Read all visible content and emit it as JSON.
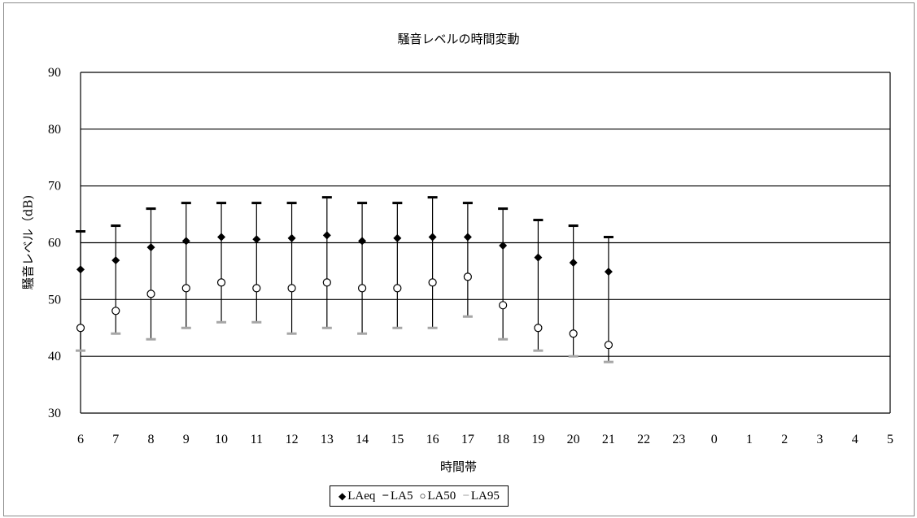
{
  "chart_data": {
    "type": "scatter",
    "title": "騒音レベルの時間変動",
    "xlabel": "時間帯",
    "ylabel": "騒音レベル（dB)",
    "categories": [
      "6",
      "7",
      "8",
      "9",
      "10",
      "11",
      "12",
      "13",
      "14",
      "15",
      "16",
      "17",
      "18",
      "19",
      "20",
      "21",
      "22",
      "23",
      "0",
      "1",
      "2",
      "3",
      "4",
      "5"
    ],
    "ylim": [
      30,
      90
    ],
    "yticks": [
      30,
      40,
      50,
      60,
      70,
      80,
      90
    ],
    "grid": true,
    "legend_position": "bottom",
    "series": [
      {
        "name": "LAeq",
        "marker": "diamond",
        "color": "#000000",
        "values": [
          55.3,
          56.9,
          59.2,
          60.3,
          61.0,
          60.6,
          60.8,
          61.3,
          60.3,
          60.8,
          61.0,
          61.0,
          59.5,
          57.4,
          56.5,
          54.9,
          null,
          null,
          null,
          null,
          null,
          null,
          null,
          null
        ]
      },
      {
        "name": "LA5",
        "marker": "dash",
        "color": "#000000",
        "values": [
          62,
          63,
          66,
          67,
          67,
          67,
          67,
          68,
          67,
          67,
          68,
          67,
          66,
          64,
          63,
          61,
          null,
          null,
          null,
          null,
          null,
          null,
          null,
          null
        ]
      },
      {
        "name": "LA50",
        "marker": "circle",
        "color": "#000000",
        "values": [
          45,
          48,
          51,
          52,
          53,
          52,
          52,
          53,
          52,
          52,
          53,
          54,
          49,
          45,
          44,
          42,
          null,
          null,
          null,
          null,
          null,
          null,
          null,
          null
        ]
      },
      {
        "name": "LA95",
        "marker": "dash",
        "color": "#a6a6a6",
        "values": [
          41,
          44,
          43,
          45,
          46,
          46,
          44,
          45,
          44,
          45,
          45,
          47,
          43,
          41,
          40,
          39,
          null,
          null,
          null,
          null,
          null,
          null,
          null,
          null
        ]
      }
    ]
  },
  "legend": {
    "laeq": {
      "symbol": "◆",
      "label": "LAeq"
    },
    "la5": {
      "symbol": "−",
      "label": "LA5"
    },
    "la50": {
      "symbol": "○",
      "label": "LA50"
    },
    "la95": {
      "symbol": "−",
      "label": "LA95"
    }
  }
}
